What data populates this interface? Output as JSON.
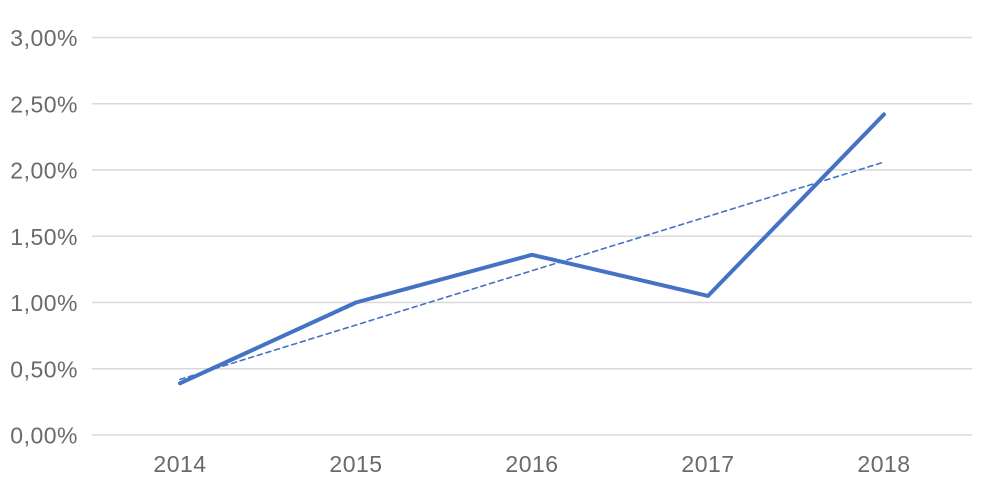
{
  "chart_data": {
    "type": "line",
    "title": "",
    "xlabel": "",
    "ylabel": "",
    "categories": [
      "2014",
      "2015",
      "2016",
      "2017",
      "2018"
    ],
    "series": [
      {
        "name": "value-series",
        "role": "data",
        "unit": "%",
        "values": [
          0.39,
          1.0,
          1.36,
          1.05,
          2.42
        ],
        "line_style": "solid",
        "color": "#4472C4",
        "stroke_width": 4
      },
      {
        "name": "linear-trendline",
        "role": "trendline",
        "unit": "%",
        "values": [
          0.42,
          0.83,
          1.24,
          1.65,
          2.06
        ],
        "line_style": "dashed",
        "color": "#4472C4",
        "stroke_width": 1.6
      }
    ],
    "ylim": [
      0,
      3
    ],
    "ytick_step": 0.5,
    "ytick_labels": [
      "0,00%",
      "0,50%",
      "1,00%",
      "1,50%",
      "2,00%",
      "2,50%",
      "3,00%"
    ],
    "grid": true,
    "legend_position": "none",
    "colors": {
      "gridline": "#D9D9D9",
      "axis_label": "#6A6A6A",
      "background": "#FFFFFF"
    }
  }
}
